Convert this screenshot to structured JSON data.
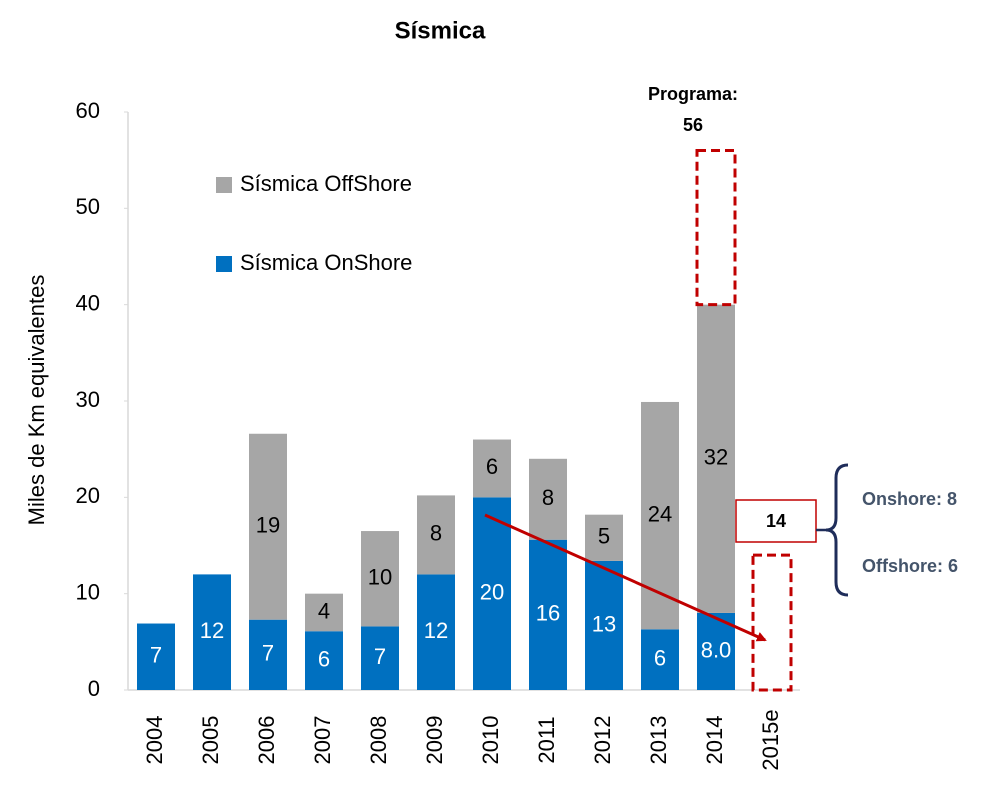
{
  "chart_data": {
    "type": "bar",
    "stacked": true,
    "title": "Sísmica",
    "y_label": "Miles de Km equivalentes",
    "categories": [
      "2004",
      "2005",
      "2006",
      "2007",
      "2008",
      "2009",
      "2010",
      "2011",
      "2012",
      "2013",
      "2014",
      "2015e"
    ],
    "series": [
      {
        "name": "Sísmica OnShore",
        "color": "#0070c0",
        "values": [
          6.9,
          12,
          7.3,
          6.1,
          6.6,
          12,
          20,
          15.6,
          13.4,
          6.3,
          8.0,
          null
        ],
        "value_labels": [
          "7",
          "12",
          "7",
          "6",
          "7",
          "12",
          "20",
          "16",
          "13",
          "6",
          "8.0",
          null
        ]
      },
      {
        "name": "Sísmica OffShore",
        "color": "#a6a6a6",
        "values": [
          null,
          null,
          19.3,
          3.9,
          9.9,
          8.2,
          6.0,
          8.4,
          4.8,
          23.6,
          32.0,
          null
        ],
        "value_labels": [
          null,
          null,
          "19",
          "4",
          "10",
          "8",
          "6",
          "8",
          "5",
          "24",
          "32",
          null
        ]
      }
    ],
    "ylim": [
      0,
      60
    ],
    "yticks": [
      0,
      10,
      20,
      30,
      40,
      50,
      60
    ],
    "annotations": {
      "program_label": "Programa:",
      "program_value": 56,
      "estimate_value": 14,
      "onshore_text": "Onshore: 8",
      "offshore_text": "Offshore: 6"
    }
  }
}
